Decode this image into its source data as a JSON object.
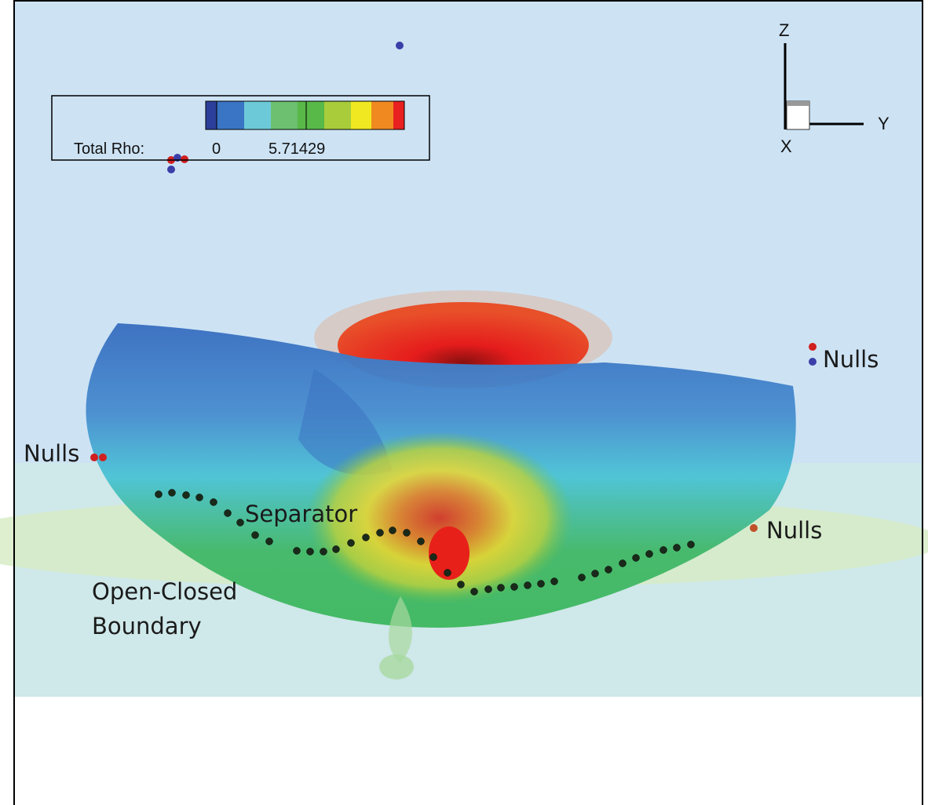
{
  "colorbar": {
    "label": "Total Rho:",
    "min_label": "0",
    "max_label": "5.71429"
  },
  "axes": {
    "z": "Z",
    "y": "Y",
    "x": "X"
  },
  "annotations": {
    "nulls_right_top": "Nulls",
    "nulls_left": "Nulls",
    "nulls_right": "Nulls",
    "separator": "Separator",
    "boundary_line1": "Open-Closed",
    "boundary_line2": "Boundary"
  }
}
